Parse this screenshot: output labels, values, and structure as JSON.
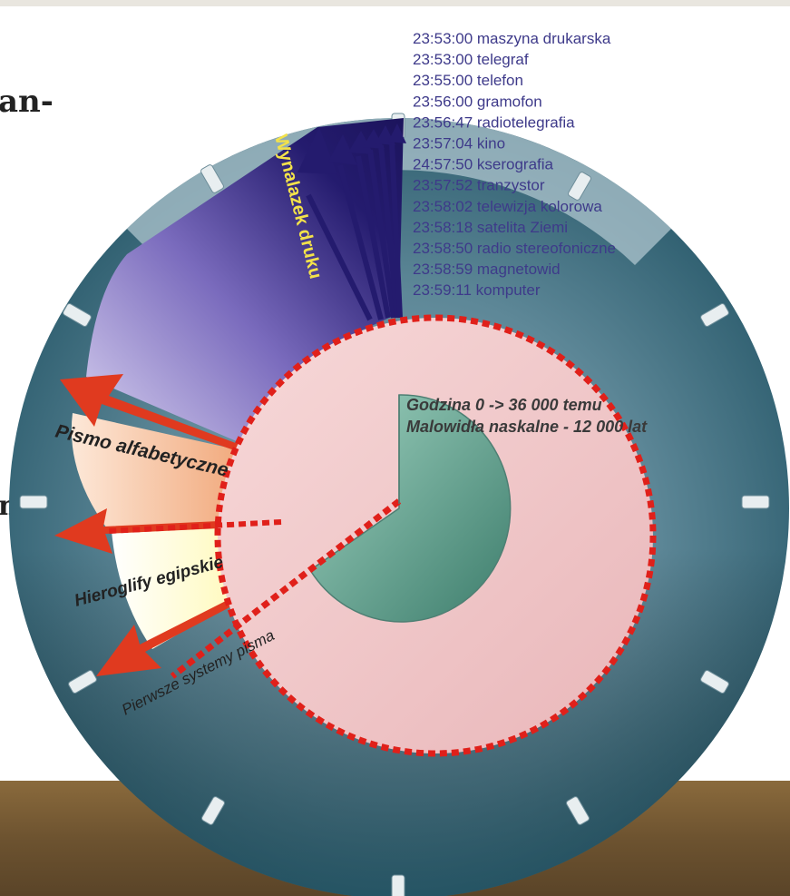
{
  "page_fragments": {
    "top_left_text": "an-",
    "left_edge_text": "n-"
  },
  "inventions": [
    {
      "time": "23:53:00",
      "name": "maszyna drukarska"
    },
    {
      "time": "23:53:00",
      "name": "telegraf"
    },
    {
      "time": "23:55:00",
      "name": "telefon"
    },
    {
      "time": "23:56:00",
      "name": "gramofon"
    },
    {
      "time": "23:56:47",
      "name": "radiotelegrafia"
    },
    {
      "time": "23:57:04",
      "name": "kino"
    },
    {
      "time": "24:57:50",
      "name": "kserografia"
    },
    {
      "time": "23:57:52",
      "name": "tranzystor"
    },
    {
      "time": "23:58:02",
      "name": "telewizja kolorowa"
    },
    {
      "time": "23:58:18",
      "name": "satelita Ziemi"
    },
    {
      "time": "23:58:50",
      "name": "radio stereofoniczne"
    },
    {
      "time": "23:58:59",
      "name": "magnetowid"
    },
    {
      "time": "23:59:11",
      "name": "komputer"
    }
  ],
  "clock_note": {
    "line1": "Godzina 0 -> 36 000 temu",
    "line2": "Malowidła naskalne - 12 000 lat"
  },
  "segments": {
    "druk": "Wynalazek druku",
    "alfabet": "Pismo alfabetyczne",
    "hieroglify": "Hieroglify egipskie",
    "pierwsze": "Pierwsze systemy pisma"
  },
  "colors": {
    "clock_face": "#3f6f80",
    "clock_rim": "#a9c1cb",
    "inner_disc": "#f1c9cb",
    "inner_wedge": "#6aa795",
    "druk": "#241b6e",
    "alfabet": "#f0a477",
    "hieroglify": "#fffbc4",
    "arrow": "#e03a1f",
    "dots": "#e0201a",
    "list_text": "#3e3a8a"
  }
}
